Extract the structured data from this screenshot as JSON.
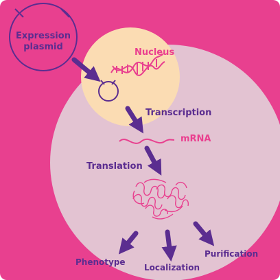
{
  "diagram": {
    "plasmid_label_line1": "Expression",
    "plasmid_label_line2": "plasmid",
    "nucleus_label": "Nucleus",
    "transcription_label": "Transcription",
    "mrna_label": "mRNA",
    "translation_label": "Translation",
    "outcomes": {
      "phenotype": "Phenotype",
      "localization": "Localization",
      "purification": "Purification"
    }
  },
  "colors": {
    "background": "#e8408f",
    "cell": "#e3c3d2",
    "nucleus": "#fbdcb3",
    "purple": "#5b2d90",
    "pink_text": "#ea3f8f"
  }
}
